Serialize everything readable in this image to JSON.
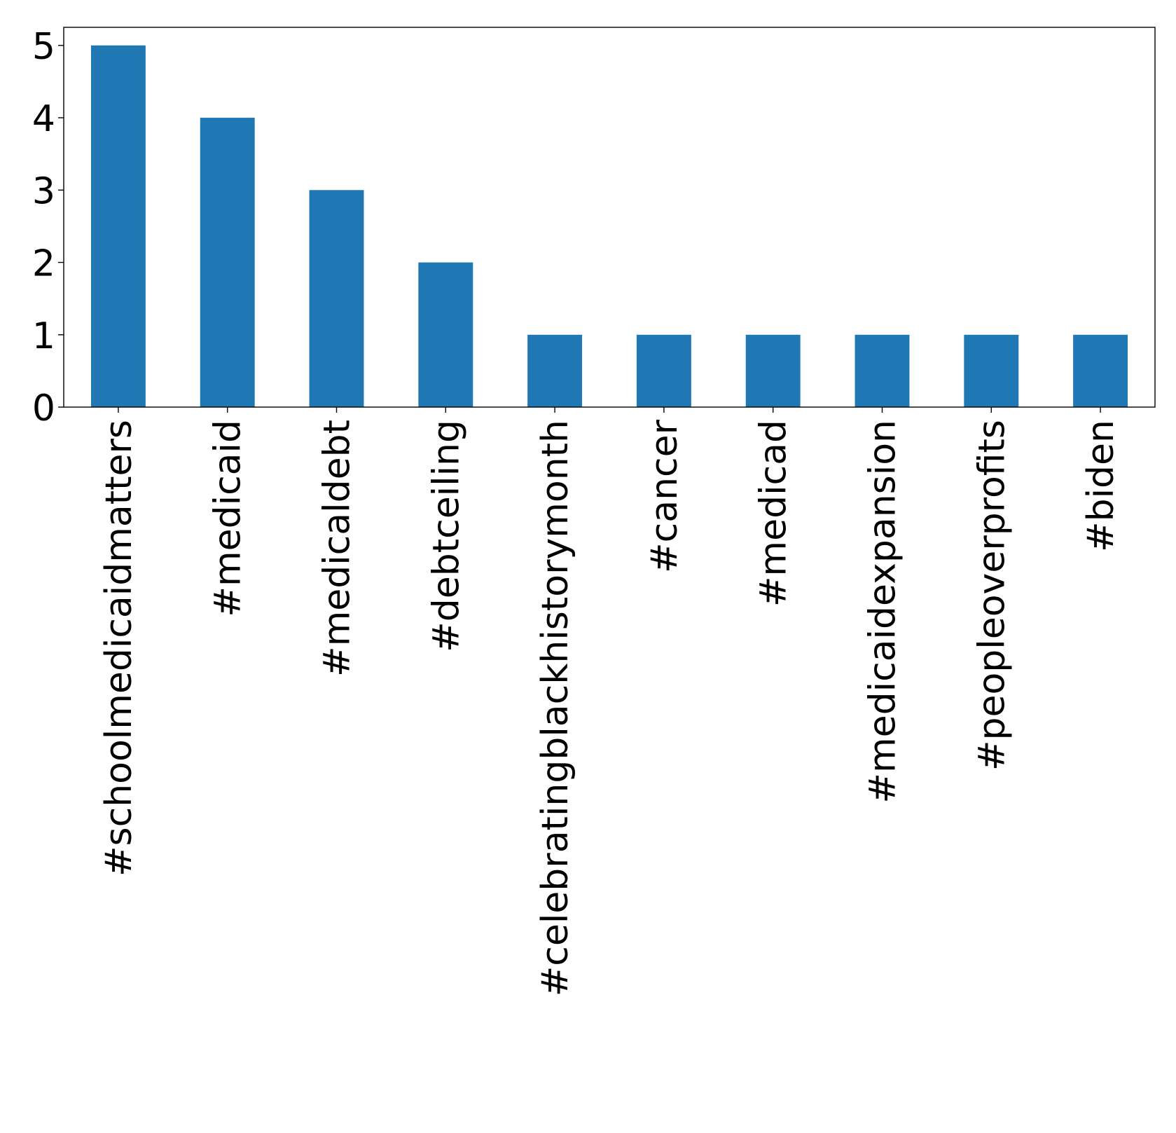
{
  "chart_data": {
    "type": "bar",
    "categories": [
      "#schoolmedicaidmatters",
      "#medicaid",
      "#medicaldebt",
      "#debtceiling",
      "#celebratingblackhistorymonth",
      "#cancer",
      "#medicad",
      "#medicaidexpansion",
      "#peopleoverprofits",
      "#biden"
    ],
    "values": [
      5,
      4,
      3,
      2,
      1,
      1,
      1,
      1,
      1,
      1
    ],
    "ylim": [
      0,
      5.25
    ],
    "yticks": [
      "0",
      "1",
      "2",
      "3",
      "4",
      "5"
    ],
    "xlabel_rotation": "vertical",
    "title": "",
    "xlabel": "",
    "ylabel": "",
    "grid": false,
    "legend": "none",
    "bar_color": "#1f77b4"
  }
}
